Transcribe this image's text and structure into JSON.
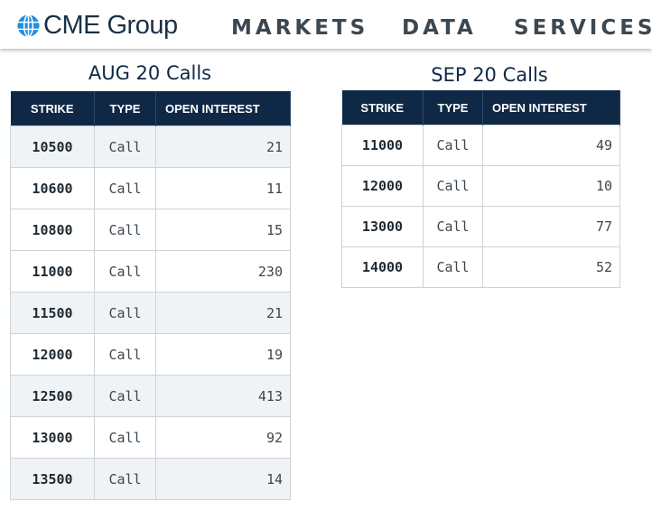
{
  "header": {
    "logo_text": "CME Group",
    "logo_icon": "globe-icon",
    "nav": [
      "MARKETS",
      "DATA",
      "SERVICES"
    ]
  },
  "columns": [
    "STRIKE",
    "TYPE",
    "OPEN INTEREST"
  ],
  "aug": {
    "title": "AUG 20 Calls",
    "rows": [
      {
        "strike": "10500",
        "type": "Call",
        "oi": "21"
      },
      {
        "strike": "10600",
        "type": "Call",
        "oi": "11"
      },
      {
        "strike": "10800",
        "type": "Call",
        "oi": "15"
      },
      {
        "strike": "11000",
        "type": "Call",
        "oi": "230"
      },
      {
        "strike": "11500",
        "type": "Call",
        "oi": "21"
      },
      {
        "strike": "12000",
        "type": "Call",
        "oi": "19"
      },
      {
        "strike": "12500",
        "type": "Call",
        "oi": "413"
      },
      {
        "strike": "13000",
        "type": "Call",
        "oi": "92"
      },
      {
        "strike": "13500",
        "type": "Call",
        "oi": "14"
      }
    ]
  },
  "sep": {
    "title": "SEP 20 Calls",
    "rows": [
      {
        "strike": "11000",
        "type": "Call",
        "oi": "49"
      },
      {
        "strike": "12000",
        "type": "Call",
        "oi": "10"
      },
      {
        "strike": "13000",
        "type": "Call",
        "oi": "77"
      },
      {
        "strike": "14000",
        "type": "Call",
        "oi": "52"
      }
    ]
  },
  "colors": {
    "header_bg": "#0f2846",
    "accent_blue": "#1f8ee0",
    "alt_row": "#eff3f6"
  }
}
